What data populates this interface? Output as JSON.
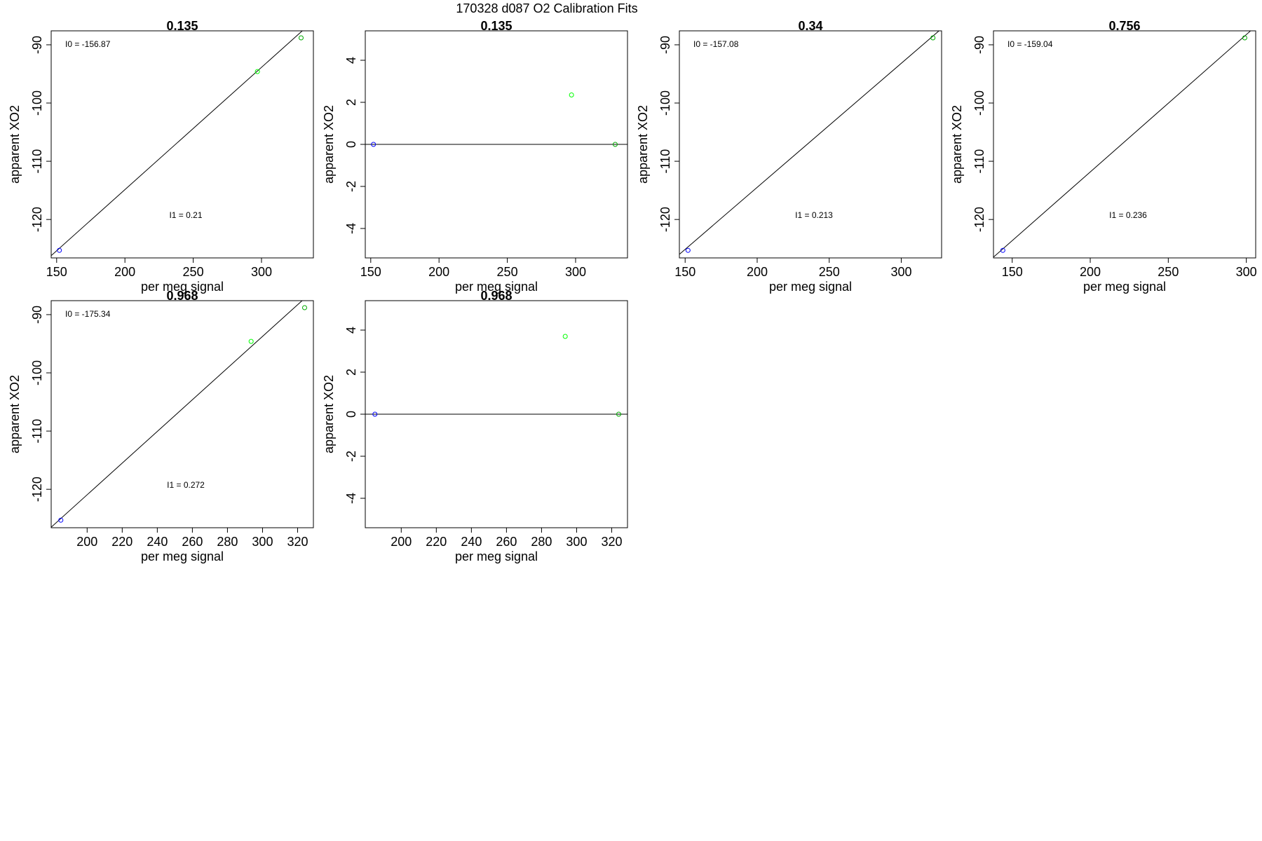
{
  "figure_title": "170328   d087   O2 Calibration Fits",
  "colors": {
    "blue": "#0000ff",
    "light_green": "#00ff00",
    "dark_green": "#00aa00",
    "line": "#000000"
  },
  "chart_data": [
    {
      "type": "scatter",
      "panel": 1,
      "title": "0.135",
      "xlabel": "per meg signal",
      "ylabel": "apparent XO2",
      "xlim": [
        146,
        338
      ],
      "ylim": [
        -126.6,
        -87.6
      ],
      "xticks": [
        150,
        200,
        250,
        300
      ],
      "xticklabels": [
        "150",
        "200",
        "250",
        "300"
      ],
      "yticks": [
        -120,
        -110,
        -100,
        -90
      ],
      "yticklabels": [
        "-120",
        "-110",
        "-100",
        "-90"
      ],
      "points": [
        {
          "x": 152,
          "y": -125.3,
          "color": "blue"
        },
        {
          "x": 297,
          "y": -94.6,
          "color": "light_green"
        },
        {
          "x": 329,
          "y": -88.8,
          "color": "dark_green"
        }
      ],
      "fit_line": {
        "intercept": -156.87,
        "slope": 0.21
      },
      "annotations": {
        "top": "I0 =  -156.87",
        "bottom": "I1 =  0.21"
      }
    },
    {
      "type": "scatter",
      "panel": 2,
      "title": "0.135",
      "xlabel": "per meg signal",
      "ylabel": "apparent XO2",
      "xlim": [
        146,
        338
      ],
      "ylim": [
        -5.4,
        5.4
      ],
      "xticks": [
        150,
        200,
        250,
        300
      ],
      "xticklabels": [
        "150",
        "200",
        "250",
        "300"
      ],
      "yticks": [
        -4,
        -2,
        0,
        2,
        4
      ],
      "yticklabels": [
        "-4",
        "-2",
        "0",
        "2",
        "4"
      ],
      "points": [
        {
          "x": 152,
          "y": 0,
          "color": "blue"
        },
        {
          "x": 297,
          "y": 2.35,
          "color": "light_green"
        },
        {
          "x": 329,
          "y": 0,
          "color": "dark_green"
        }
      ],
      "hline": 0
    },
    {
      "type": "scatter",
      "panel": 3,
      "title": "0.34",
      "xlabel": "per meg signal",
      "ylabel": "apparent XO2",
      "xlim": [
        146,
        328
      ],
      "ylim": [
        -126.6,
        -87.6
      ],
      "xticks": [
        150,
        200,
        250,
        300
      ],
      "xticklabels": [
        "150",
        "200",
        "250",
        "300"
      ],
      "yticks": [
        -120,
        -110,
        -100,
        -90
      ],
      "yticklabels": [
        "-120",
        "-110",
        "-100",
        "-90"
      ],
      "points": [
        {
          "x": 152,
          "y": -125.3,
          "color": "blue"
        },
        {
          "x": 322,
          "y": -88.8,
          "color": "dark_green"
        }
      ],
      "fit_line": {
        "intercept": -157.08,
        "slope": 0.213
      },
      "annotations": {
        "top": "I0 =  -157.08",
        "bottom": "I1 =  0.213"
      }
    },
    {
      "type": "scatter",
      "panel": 4,
      "title": "0.756",
      "xlabel": "per meg signal",
      "ylabel": "apparent XO2",
      "xlim": [
        138,
        306
      ],
      "ylim": [
        -126.6,
        -87.6
      ],
      "xticks": [
        150,
        200,
        250,
        300
      ],
      "xticklabels": [
        "150",
        "200",
        "250",
        "300"
      ],
      "yticks": [
        -120,
        -110,
        -100,
        -90
      ],
      "yticklabels": [
        "-120",
        "-110",
        "-100",
        "-90"
      ],
      "points": [
        {
          "x": 144,
          "y": -125.3,
          "color": "blue"
        },
        {
          "x": 299,
          "y": -88.8,
          "color": "dark_green"
        }
      ],
      "fit_line": {
        "intercept": -159.04,
        "slope": 0.236
      },
      "annotations": {
        "top": "I0 =  -159.04",
        "bottom": "I1 =  0.236"
      }
    },
    {
      "type": "scatter",
      "panel": 5,
      "title": "0.968",
      "xlabel": "per meg signal",
      "ylabel": "apparent XO2",
      "xlim": [
        179.5,
        329
      ],
      "ylim": [
        -126.6,
        -87.6
      ],
      "xticks": [
        200,
        220,
        240,
        260,
        280,
        300,
        320
      ],
      "xticklabels": [
        "200",
        "220",
        "240",
        "260",
        "280",
        "300",
        "320"
      ],
      "yticks": [
        -120,
        -110,
        -100,
        -90
      ],
      "yticklabels": [
        "-120",
        "-110",
        "-100",
        "-90"
      ],
      "points": [
        {
          "x": 185,
          "y": -125.3,
          "color": "blue"
        },
        {
          "x": 293.5,
          "y": -94.6,
          "color": "light_green"
        },
        {
          "x": 324,
          "y": -88.8,
          "color": "dark_green"
        }
      ],
      "fit_line": {
        "intercept": -175.34,
        "slope": 0.272
      },
      "annotations": {
        "top": "I0 =  -175.34",
        "bottom": "I1 =  0.272"
      }
    },
    {
      "type": "scatter",
      "panel": 6,
      "title": "0.968",
      "xlabel": "per meg signal",
      "ylabel": "apparent XO2",
      "xlim": [
        179.5,
        329
      ],
      "ylim": [
        -5.4,
        5.4
      ],
      "xticks": [
        200,
        220,
        240,
        260,
        280,
        300,
        320
      ],
      "xticklabels": [
        "200",
        "220",
        "240",
        "260",
        "280",
        "300",
        "320"
      ],
      "yticks": [
        -4,
        -2,
        0,
        2,
        4
      ],
      "yticklabels": [
        "-4",
        "-2",
        "0",
        "2",
        "4"
      ],
      "points": [
        {
          "x": 185,
          "y": 0,
          "color": "blue"
        },
        {
          "x": 293.5,
          "y": 3.7,
          "color": "light_green"
        },
        {
          "x": 324,
          "y": 0,
          "color": "dark_green"
        }
      ],
      "hline": 0
    }
  ]
}
